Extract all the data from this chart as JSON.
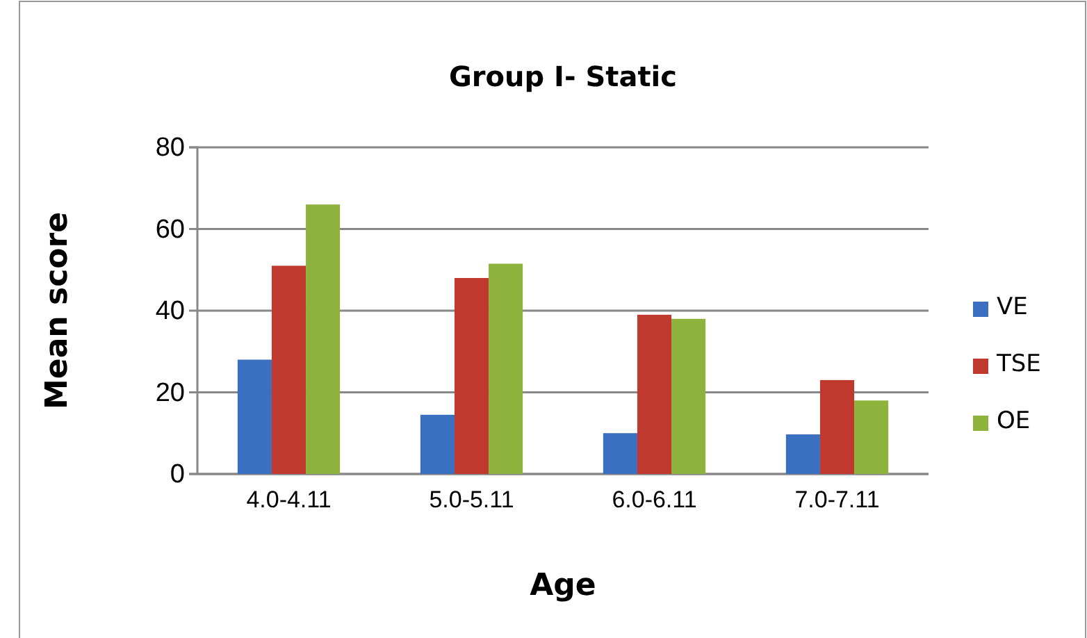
{
  "chart_data": {
    "type": "bar",
    "title": "Group I- Static",
    "xlabel": "Age",
    "ylabel": "Mean score",
    "categories": [
      "4.0-4.11",
      "5.0-5.11",
      "6.0-6.11",
      "7.0-7.11"
    ],
    "series": [
      {
        "name": "VE",
        "color": "#3a70bf",
        "values": [
          28,
          14.5,
          10,
          9.7
        ]
      },
      {
        "name": "TSE",
        "color": "#c0392f",
        "values": [
          51,
          48,
          39,
          23
        ]
      },
      {
        "name": "OE",
        "color": "#8db33d",
        "values": [
          66,
          51.5,
          38,
          18
        ]
      }
    ],
    "ylim": [
      0,
      80
    ],
    "yticks": [
      0,
      20,
      40,
      60,
      80
    ],
    "grid": "y",
    "legend": "right"
  }
}
